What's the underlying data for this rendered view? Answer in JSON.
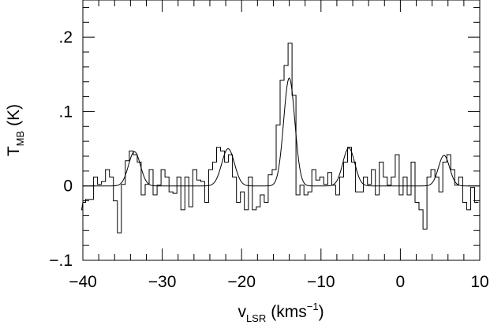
{
  "chart_data": {
    "type": "line",
    "title": "",
    "xlabel": {
      "main": "v",
      "sub": "LSR",
      "units": "(kms",
      "sup": "−1",
      "close": ")"
    },
    "ylabel": {
      "main": "T",
      "sub": "MB",
      "units": "(K)"
    },
    "xlim": [
      -40,
      10
    ],
    "ylim": [
      -0.1,
      0.25
    ],
    "x_ticks": [
      -40,
      -30,
      -20,
      -10,
      0,
      10
    ],
    "x_tick_labels": [
      "−40",
      "−30",
      "−20",
      "−10",
      "0",
      "10"
    ],
    "x_minor_step": 2,
    "y_ticks": [
      -0.1,
      0,
      0.1,
      0.2
    ],
    "y_tick_labels": [
      "−.1",
      "0",
      ".1",
      ".2"
    ],
    "y_minor_step": 0.02,
    "grid": false,
    "line_color": "#000000",
    "series": [
      {
        "style": "histogram",
        "x": [
          -40.4,
          -39.9,
          -39.4,
          -38.9,
          -38.4,
          -37.9,
          -37.4,
          -36.9,
          -36.4,
          -35.9,
          -35.4,
          -34.9,
          -34.4,
          -33.9,
          -33.4,
          -32.9,
          -32.4,
          -31.9,
          -31.4,
          -30.9,
          -30.4,
          -29.9,
          -29.4,
          -28.9,
          -28.4,
          -27.9,
          -27.4,
          -26.9,
          -26.4,
          -25.9,
          -25.4,
          -24.9,
          -24.4,
          -23.9,
          -23.4,
          -22.9,
          -22.4,
          -21.9,
          -21.4,
          -20.9,
          -20.4,
          -19.9,
          -19.4,
          -18.9,
          -18.4,
          -17.9,
          -17.4,
          -16.9,
          -16.4,
          -15.9,
          -15.4,
          -14.9,
          -14.4,
          -13.9,
          -13.4,
          -12.9,
          -12.4,
          -11.9,
          -11.4,
          -10.9,
          -10.4,
          -9.9,
          -9.4,
          -8.9,
          -8.4,
          -7.9,
          -7.4,
          -6.9,
          -6.4,
          -5.9,
          -5.4,
          -4.9,
          -4.4,
          -3.9,
          -3.4,
          -2.9,
          -2.4,
          -1.9,
          -1.4,
          -0.9,
          -0.4,
          0.1,
          0.6,
          1.1,
          1.6,
          2.1,
          2.6,
          3.1,
          3.6,
          4.1,
          4.6,
          5.1,
          5.6,
          6.1,
          6.6,
          7.1,
          7.6,
          8.1,
          8.6,
          9.1,
          9.6
        ],
        "values": [
          -0.032,
          -0.022,
          -0.018,
          -0.018,
          0.012,
          0.002,
          0.006,
          0.022,
          0.012,
          -0.02,
          -0.063,
          0.002,
          0.034,
          0.047,
          0.042,
          0.032,
          -0.012,
          0.002,
          0.022,
          -0.012,
          0.001,
          0.022,
          0.012,
          -0.008,
          -0.01,
          0.012,
          -0.032,
          0.012,
          -0.028,
          0.022,
          0.008,
          0.006,
          -0.022,
          0.022,
          0.032,
          0.052,
          0.047,
          0.032,
          0.042,
          0.012,
          -0.022,
          -0.008,
          -0.032,
          0.012,
          -0.032,
          -0.028,
          -0.012,
          -0.022,
          0.015,
          0.022,
          0.082,
          0.142,
          0.162,
          0.192,
          0.122,
          -0.012,
          0.001,
          -0.012,
          -0.008,
          0.022,
          0.008,
          0.012,
          0.002,
          0.018,
          0.001,
          -0.012,
          0.012,
          0.032,
          0.052,
          0.032,
          -0.008,
          -0.008,
          0.012,
          0.002,
          0.022,
          -0.012,
          0.032,
          0.012,
          0.001,
          0.012,
          0.042,
          -0.012,
          0.012,
          -0.012,
          0.032,
          -0.022,
          -0.032,
          -0.058,
          0.012,
          0.022,
          0.012,
          -0.008,
          0.032,
          0.042,
          0.022,
          0.001,
          0.012,
          -0.022,
          -0.032,
          -0.002,
          -0.022
        ]
      },
      {
        "style": "gaussian-fit",
        "baseline": 0,
        "components": [
          {
            "center": -33.5,
            "amplitude": 0.046,
            "sigma": 0.75
          },
          {
            "center": -21.7,
            "amplitude": 0.05,
            "sigma": 0.8
          },
          {
            "center": -14.0,
            "amplitude": 0.145,
            "sigma": 0.7
          },
          {
            "center": -6.5,
            "amplitude": 0.051,
            "sigma": 0.75
          },
          {
            "center": 5.5,
            "amplitude": 0.041,
            "sigma": 0.7
          }
        ]
      }
    ]
  }
}
